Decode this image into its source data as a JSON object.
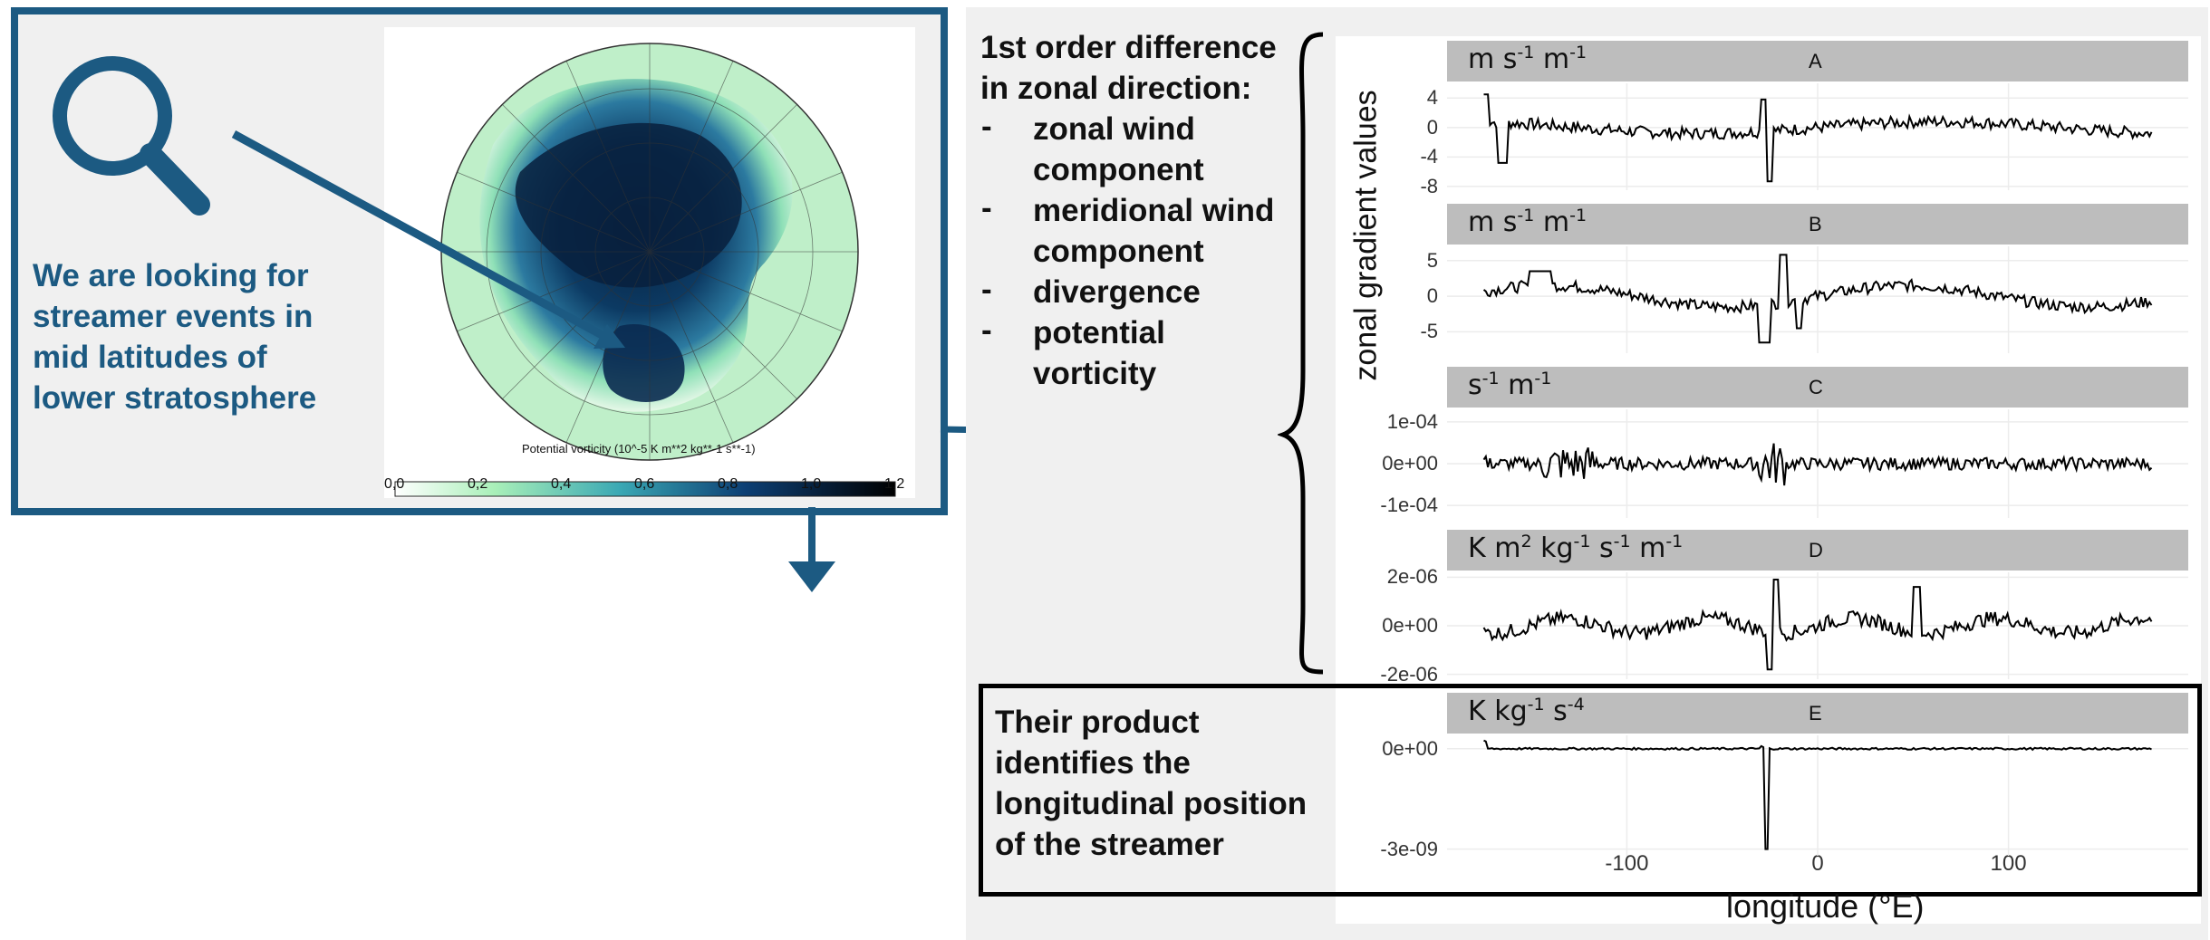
{
  "left": {
    "text_lines": [
      "We are looking for",
      "streamer events in",
      "mid latitudes of",
      "lower stratosphere"
    ],
    "colorbar_title": "Potential vorticity (10^-5 K m**2 kg**-1 s**-1)",
    "colorbar_ticks": [
      "0,0",
      "0,2",
      "0,4",
      "0,6",
      "0,8",
      "1,0",
      "1,2"
    ]
  },
  "right": {
    "title_lines": [
      "1st order difference",
      "in zonal direction:"
    ],
    "bullets": [
      [
        "zonal wind",
        "component"
      ],
      [
        "meridional wind",
        "component"
      ],
      [
        "divergence"
      ],
      [
        "potential",
        "vorticity"
      ]
    ],
    "dash": "-",
    "product_lines": [
      "Their product",
      "identifies the",
      "longitudinal position",
      "of the streamer"
    ],
    "y_axis_label": "zonal gradient values",
    "x_axis_label": "longitude (°E)"
  },
  "chart_data": {
    "type": "line",
    "xlabel": "longitude (°E)",
    "ylabel": "zonal gradient values",
    "x_ticks": [
      "-100",
      "0",
      "100"
    ],
    "xlim": [
      -180,
      180
    ],
    "panels": [
      {
        "letter": "A",
        "unit_base": [
          "m s",
          " m"
        ],
        "unit_sup": [
          "-1",
          "-1"
        ],
        "y_ticks": [
          "4",
          "0",
          "-4",
          "-8"
        ],
        "ylim": [
          -8.5,
          6
        ]
      },
      {
        "letter": "B",
        "unit_base": [
          "m s",
          " m"
        ],
        "unit_sup": [
          "-1",
          "-1"
        ],
        "y_ticks": [
          "5",
          "0",
          "-5"
        ],
        "ylim": [
          -8,
          7
        ]
      },
      {
        "letter": "C",
        "unit_base": [
          "s",
          " m"
        ],
        "unit_sup": [
          "-1",
          "-1"
        ],
        "y_ticks": [
          "1e-04",
          "0e+00",
          "-1e-04"
        ],
        "ylim": [
          -0.00013,
          0.00013
        ]
      },
      {
        "letter": "D",
        "unit_base": [
          "K m",
          " kg",
          " s",
          " m"
        ],
        "unit_sup": [
          "2",
          "-1",
          "-1",
          "-1"
        ],
        "y_ticks": [
          "2e-06",
          "0e+00",
          "-2e-06"
        ],
        "ylim": [
          -2.2e-06,
          2.2e-06
        ]
      },
      {
        "letter": "E",
        "unit_base": [
          "K kg",
          " s"
        ],
        "unit_sup": [
          "-1",
          "-4"
        ],
        "y_ticks": [
          "0e+00",
          "-3e-09"
        ],
        "ylim": [
          -3.2e-09,
          4e-10
        ]
      }
    ]
  },
  "colors": {
    "accent": "#1c5a82",
    "strip": "#bdbdbd",
    "panel_bg": "#f0f0f0"
  }
}
